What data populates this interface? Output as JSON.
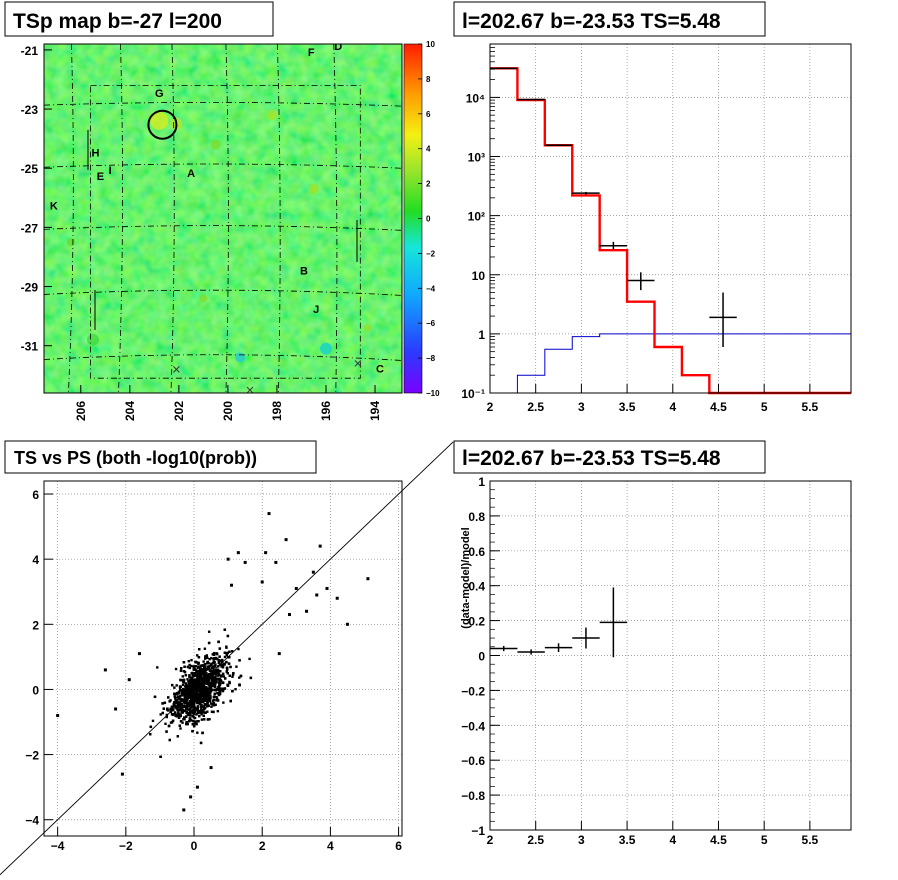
{
  "titles": {
    "map": "TSp map b=-27 l=200",
    "spectrum": "l=202.67 b=-23.53 TS=5.48",
    "scatter": "TS vs PS (both -log10(prob))",
    "residual": "l=202.67 b=-23.53 TS=5.48"
  },
  "colors": {
    "data": "#000000",
    "model_red": "#ff0000",
    "model_blue": "#0000cc",
    "map_base": "#22dd22"
  },
  "chart_data": [
    {
      "id": "tsmap",
      "type": "heatmap",
      "title": "TSp map b=-27 l=200",
      "x_ticks": [
        "206",
        "204",
        "202",
        "200",
        "198",
        "196",
        "194"
      ],
      "y_ticks": [
        "-21",
        "-23",
        "-25",
        "-27",
        "-29",
        "-31"
      ],
      "xlim": [
        207.5,
        192.9
      ],
      "ylim": [
        -32.6,
        -20.8
      ],
      "colorbar_range": [
        -10,
        10
      ],
      "colorbar_ticks": [
        "10",
        "8",
        "6",
        "4",
        "2",
        "0",
        "−2",
        "−4",
        "−6",
        "−8",
        "−10"
      ],
      "labels": [
        {
          "text": "G",
          "l": 202.8,
          "b": -22.6
        },
        {
          "text": "F",
          "l": 196.6,
          "b": -21.2
        },
        {
          "text": "D",
          "l": 195.5,
          "b": -21.0
        },
        {
          "text": "H",
          "l": 205.4,
          "b": -24.6
        },
        {
          "text": "E",
          "l": 205.2,
          "b": -25.4
        },
        {
          "text": "I",
          "l": 204.8,
          "b": -25.2
        },
        {
          "text": "A",
          "l": 201.5,
          "b": -25.3
        },
        {
          "text": "K",
          "l": 207.1,
          "b": -26.4
        },
        {
          "text": "B",
          "l": 196.9,
          "b": -28.6
        },
        {
          "text": "J",
          "l": 196.4,
          "b": -29.9
        },
        {
          "text": "C",
          "l": 193.8,
          "b": -31.9
        }
      ],
      "circle": {
        "l": 202.67,
        "b": -23.53
      },
      "crosses": [
        {
          "l": 202.1,
          "b": -31.8
        },
        {
          "l": 194.7,
          "b": -31.6
        },
        {
          "l": 199.1,
          "b": -32.5
        }
      ]
    },
    {
      "id": "spectrum",
      "type": "line",
      "title": "l=202.67 b=-23.53 TS=5.48",
      "log_y": true,
      "xlim": [
        2.0,
        5.95
      ],
      "ylim": [
        0.1,
        80000
      ],
      "x_ticks": [
        "2",
        "2.5",
        "3",
        "3.5",
        "4",
        "4.5",
        "5",
        "5.5"
      ],
      "y_ticks": [
        "10⁻¹",
        "1",
        "10",
        "10²",
        "10³",
        "10⁴"
      ],
      "edges": [
        2.0,
        2.3,
        2.6,
        2.9,
        3.2,
        3.5,
        3.8,
        4.1,
        4.4,
        4.7,
        5.0,
        5.3,
        5.6,
        5.95
      ],
      "model_red": [
        31000,
        9000,
        1550,
        220,
        26,
        3.5,
        0.6,
        0.2,
        0.1,
        0.1,
        0.1,
        0.1,
        0.1
      ],
      "model_blue": [
        0.1,
        0.2,
        0.55,
        0.9,
        1.0,
        1.0,
        1.0,
        1.0,
        1.0,
        1.0,
        1.0,
        1.0,
        1.0
      ],
      "data_points": [
        {
          "x": 2.15,
          "xerr": 0.15,
          "y": 31000,
          "ylo": 31000,
          "yhi": 31000
        },
        {
          "x": 2.45,
          "xerr": 0.15,
          "y": 9200,
          "ylo": 9200,
          "yhi": 9200
        },
        {
          "x": 2.75,
          "xerr": 0.15,
          "y": 1550,
          "ylo": 1550,
          "yhi": 1550
        },
        {
          "x": 3.05,
          "xerr": 0.15,
          "y": 240,
          "ylo": 228,
          "yhi": 252
        },
        {
          "x": 3.35,
          "xerr": 0.15,
          "y": 31,
          "ylo": 27,
          "yhi": 36
        },
        {
          "x": 3.65,
          "xerr": 0.15,
          "y": 8,
          "ylo": 5.5,
          "yhi": 11
        },
        {
          "x": 4.55,
          "xerr": 0.15,
          "y": 1.9,
          "ylo": 0.6,
          "yhi": 5.0
        }
      ]
    },
    {
      "id": "scatter",
      "type": "scatter",
      "title": "TS vs PS (both -log10(prob))",
      "xlim": [
        -4.4,
        6.1
      ],
      "ylim": [
        -4.5,
        6.4
      ],
      "x_ticks": [
        "−4",
        "−2",
        "0",
        "2",
        "4",
        "6"
      ],
      "y_ticks": [
        "−4",
        "−2",
        "0",
        "2",
        "4",
        "6"
      ],
      "diagonal": true,
      "outliers": [
        [
          2.2,
          5.4
        ],
        [
          3.7,
          4.4
        ],
        [
          5.1,
          3.4
        ],
        [
          4.2,
          2.8
        ],
        [
          3.5,
          3.6
        ],
        [
          2.1,
          4.2
        ],
        [
          1.3,
          4.2
        ],
        [
          1.5,
          3.9
        ],
        [
          2.7,
          4.6
        ],
        [
          3.3,
          2.4
        ],
        [
          3.0,
          3.1
        ],
        [
          2.0,
          3.3
        ],
        [
          1.1,
          3.2
        ],
        [
          2.4,
          3.9
        ],
        [
          3.6,
          2.9
        ],
        [
          2.8,
          2.3
        ],
        [
          -4.0,
          -0.8
        ],
        [
          -2.1,
          -2.6
        ],
        [
          -0.3,
          -3.7
        ],
        [
          -2.3,
          -0.6
        ],
        [
          -1.9,
          0.3
        ],
        [
          0.5,
          -2.4
        ],
        [
          -0.1,
          -3.3
        ],
        [
          -1.6,
          1.1
        ],
        [
          3.9,
          3.1
        ],
        [
          2.5,
          1.1
        ],
        [
          0.1,
          -3.0
        ],
        [
          -2.6,
          0.6
        ],
        [
          4.5,
          2.0
        ],
        [
          1.0,
          4.0
        ]
      ]
    },
    {
      "id": "residual",
      "type": "line",
      "title": "l=202.67 b=-23.53 TS=5.48",
      "ylabel": "(data-model)/model",
      "xlim": [
        2.0,
        5.95
      ],
      "ylim": [
        -1.0,
        1.0
      ],
      "x_ticks": [
        "2",
        "2.5",
        "3",
        "3.5",
        "4",
        "4.5",
        "5",
        "5.5"
      ],
      "y_ticks": [
        "−1",
        "−0.8",
        "−0.6",
        "−0.4",
        "−0.2",
        "0",
        "0.2",
        "0.4",
        "0.6",
        "0.8",
        "1"
      ],
      "data_points": [
        {
          "x": 2.15,
          "xerr": 0.15,
          "y": 0.04,
          "yerr": 0.015
        },
        {
          "x": 2.45,
          "xerr": 0.15,
          "y": 0.02,
          "yerr": 0.015
        },
        {
          "x": 2.75,
          "xerr": 0.15,
          "y": 0.045,
          "yerr": 0.025
        },
        {
          "x": 3.05,
          "xerr": 0.15,
          "y": 0.1,
          "yerr": 0.06
        },
        {
          "x": 3.35,
          "xerr": 0.15,
          "y": 0.19,
          "yerr": 0.2
        }
      ]
    }
  ]
}
